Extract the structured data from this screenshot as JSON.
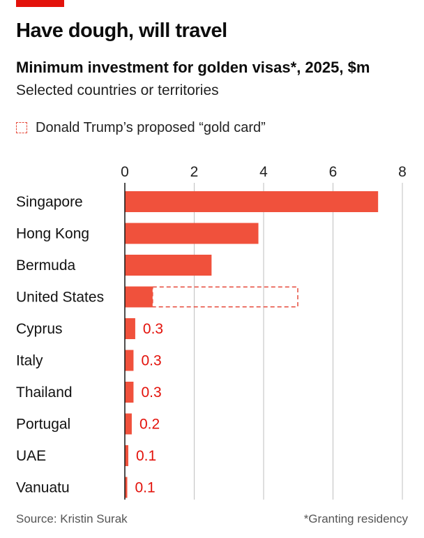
{
  "header": {
    "title": "Have dough, will travel",
    "subtitle": "Minimum investment for golden visas*, 2025, $m",
    "subtitle2": "Selected countries or territories"
  },
  "legend": {
    "label": "Donald Trump’s proposed “gold card”"
  },
  "footer": {
    "source": "Source: Kristin Surak",
    "footnote": "*Granting residency"
  },
  "colors": {
    "accent": "#e3120b",
    "bar": "#f0513c",
    "value_label": "#e3120b",
    "gridline": "#bfbfbf"
  },
  "chart_data": {
    "type": "bar",
    "orientation": "horizontal",
    "title": "Minimum investment for golden visas*, 2025, $m",
    "xlabel": "",
    "ylabel": "",
    "xlim": [
      0,
      8
    ],
    "xticks": [
      0,
      2,
      4,
      6,
      8
    ],
    "categories": [
      "Singapore",
      "Hong Kong",
      "Bermuda",
      "United States",
      "Cyprus",
      "Italy",
      "Thailand",
      "Portugal",
      "UAE",
      "Vanuatu"
    ],
    "values": [
      7.3,
      3.85,
      2.5,
      0.8,
      0.3,
      0.25,
      0.25,
      0.2,
      0.1,
      0.07
    ],
    "value_labels": [
      "",
      "",
      "",
      "",
      "0.3",
      "0.3",
      "0.3",
      "0.2",
      "0.1",
      "0.1"
    ],
    "proposed": {
      "category": "United States",
      "name": "Donald Trump’s proposed “gold card”",
      "value": 5
    }
  }
}
